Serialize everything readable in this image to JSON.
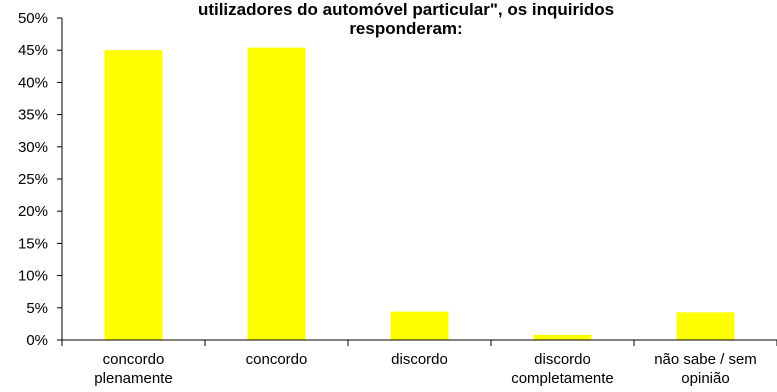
{
  "chart_data": {
    "type": "bar",
    "title_lines": [
      "utilizadores do automóvel particular\", os inquiridos",
      "responderam:"
    ],
    "categories": [
      [
        "concordo",
        "plenamente"
      ],
      [
        "concordo"
      ],
      [
        "discordo"
      ],
      [
        "discordo",
        "completamente"
      ],
      [
        "não sabe / sem",
        "opinião"
      ]
    ],
    "values": [
      45.0,
      45.4,
      4.4,
      0.8,
      4.3
    ],
    "ylim": [
      0,
      50
    ],
    "yticks": [
      "0%",
      "5%",
      "10%",
      "15%",
      "20%",
      "25%",
      "30%",
      "35%",
      "40%",
      "45%",
      "50%"
    ],
    "bar_color": "#ffff00",
    "grid": false,
    "legend": "none"
  }
}
